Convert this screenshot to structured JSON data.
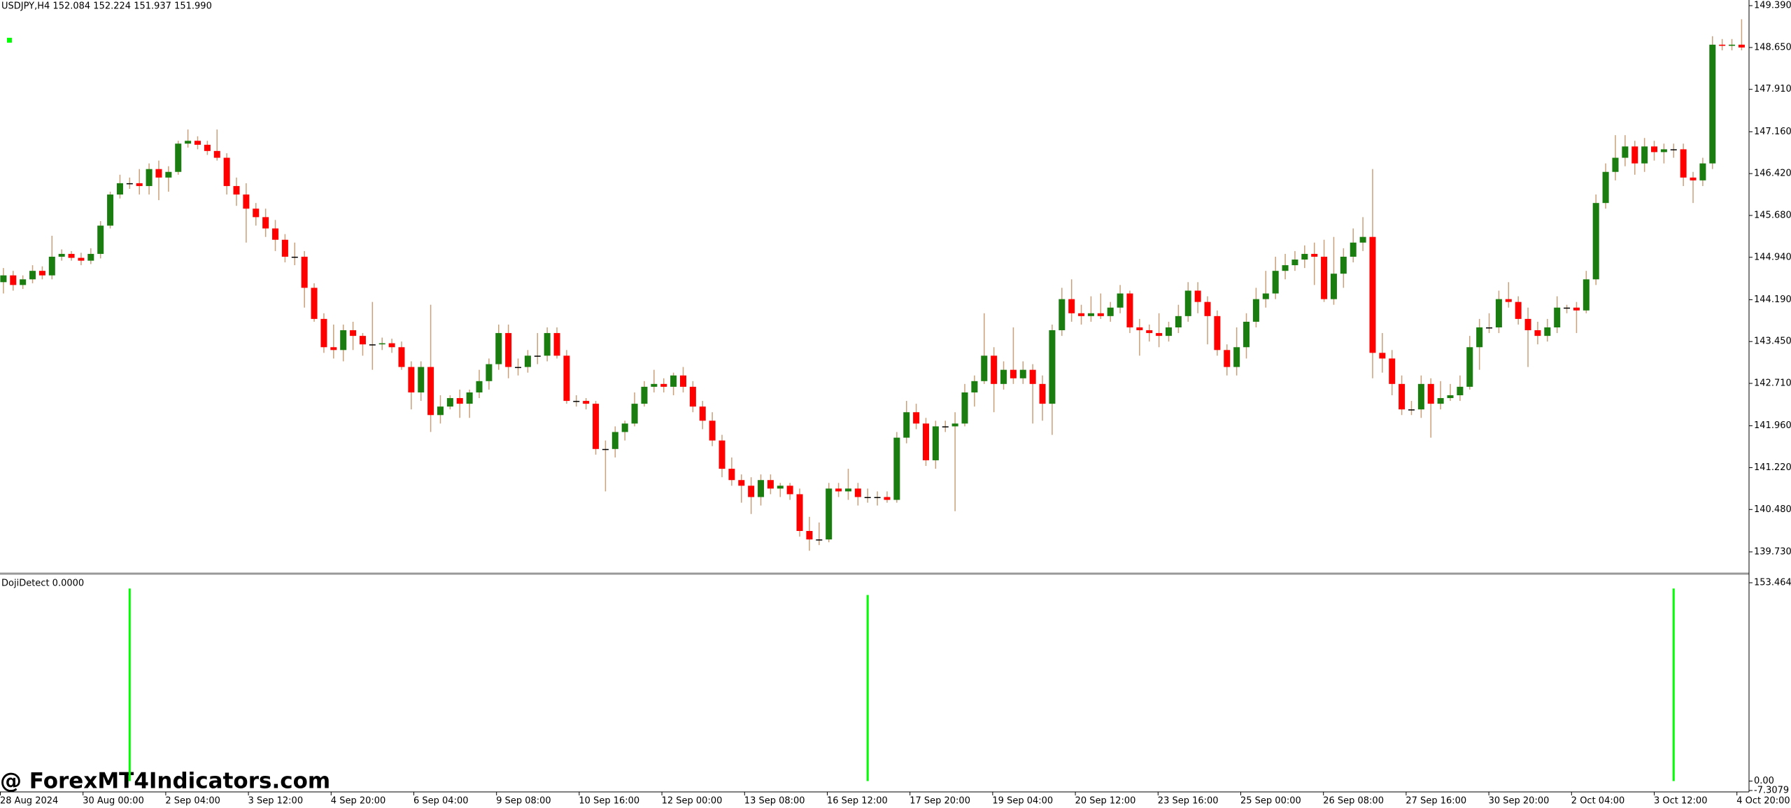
{
  "header": "USDJPY,H4  152.084 152.224 151.937 151.990",
  "watermark": "@ ForexMT4Indicators.com",
  "chart_data": [
    {
      "type": "candlestick",
      "up_color": "#1a7d10",
      "down_color": "#ff0000",
      "wick_color": "#c9a07a",
      "ylim": [
        139.37,
        149.49
      ],
      "yticks": [
        {
          "value": 149.39,
          "label": "149.390"
        },
        {
          "value": 148.65,
          "label": "148.650"
        },
        {
          "value": 147.91,
          "label": "147.910"
        },
        {
          "value": 147.16,
          "label": "147.160"
        },
        {
          "value": 146.42,
          "label": "146.420"
        },
        {
          "value": 145.68,
          "label": "145.680"
        },
        {
          "value": 144.94,
          "label": "144.940"
        },
        {
          "value": 144.19,
          "label": "144.190"
        },
        {
          "value": 143.45,
          "label": "143.450"
        },
        {
          "value": 142.71,
          "label": "142.710"
        },
        {
          "value": 141.96,
          "label": "141.960"
        },
        {
          "value": 141.22,
          "label": "141.220"
        },
        {
          "value": 140.48,
          "label": "140.480"
        },
        {
          "value": 139.73,
          "label": "139.730"
        }
      ],
      "xlabels": [
        "28 Aug 2024",
        "30 Aug 00:00",
        "2 Sep 04:00",
        "3 Sep 12:00",
        "4 Sep 20:00",
        "6 Sep 04:00",
        "9 Sep 08:00",
        "10 Sep 16:00",
        "12 Sep 00:00",
        "13 Sep 08:00",
        "16 Sep 12:00",
        "17 Sep 20:00",
        "19 Sep 04:00",
        "20 Sep 12:00",
        "23 Sep 16:00",
        "25 Sep 00:00",
        "26 Sep 08:00",
        "27 Sep 16:00",
        "30 Sep 20:00",
        "2 Oct 04:00",
        "3 Oct 12:00",
        "4 Oct 20:00"
      ],
      "candles": [
        [
          144.5,
          144.75,
          144.3,
          144.62
        ],
        [
          144.62,
          144.7,
          144.35,
          144.45
        ],
        [
          144.45,
          144.62,
          144.38,
          144.55
        ],
        [
          144.55,
          144.8,
          144.48,
          144.7
        ],
        [
          144.7,
          144.78,
          144.55,
          144.62
        ],
        [
          144.62,
          145.32,
          144.55,
          144.95
        ],
        [
          144.95,
          145.08,
          144.88,
          145.0
        ],
        [
          145.0,
          145.05,
          144.88,
          144.93
        ],
        [
          144.93,
          145.02,
          144.8,
          144.88
        ],
        [
          144.88,
          145.1,
          144.82,
          145.0
        ],
        [
          145.0,
          145.58,
          144.92,
          145.5
        ],
        [
          145.5,
          146.1,
          145.45,
          146.05
        ],
        [
          146.05,
          146.4,
          145.98,
          146.25
        ],
        [
          146.25,
          146.35,
          146.15,
          146.25
        ],
        [
          146.25,
          146.5,
          146.05,
          146.2
        ],
        [
          146.2,
          146.6,
          146.05,
          146.5
        ],
        [
          146.5,
          146.65,
          145.95,
          146.35
        ],
        [
          146.35,
          146.55,
          146.1,
          146.45
        ],
        [
          146.45,
          147.0,
          146.4,
          146.95
        ],
        [
          146.95,
          147.2,
          146.88,
          147.0
        ],
        [
          147.0,
          147.08,
          146.85,
          146.93
        ],
        [
          146.93,
          147.0,
          146.75,
          146.82
        ],
        [
          146.82,
          147.2,
          146.65,
          146.7
        ],
        [
          146.7,
          146.78,
          146.05,
          146.2
        ],
        [
          146.2,
          146.35,
          145.85,
          146.05
        ],
        [
          146.05,
          146.25,
          145.2,
          145.8
        ],
        [
          145.8,
          145.9,
          145.5,
          145.65
        ],
        [
          145.65,
          145.8,
          145.3,
          145.45
        ],
        [
          145.45,
          145.6,
          145.05,
          145.25
        ],
        [
          145.25,
          145.35,
          144.85,
          144.95
        ],
        [
          144.95,
          145.2,
          144.8,
          144.95
        ],
        [
          144.95,
          145.05,
          144.05,
          144.4
        ],
        [
          144.4,
          144.48,
          143.8,
          143.85
        ],
        [
          143.85,
          143.95,
          143.25,
          143.35
        ],
        [
          143.35,
          143.75,
          143.15,
          143.3
        ],
        [
          143.3,
          143.75,
          143.1,
          143.65
        ],
        [
          143.65,
          143.8,
          143.3,
          143.55
        ],
        [
          143.55,
          143.6,
          143.2,
          143.4
        ],
        [
          143.4,
          144.15,
          142.95,
          143.4
        ],
        [
          143.4,
          143.52,
          143.3,
          143.42
        ],
        [
          143.42,
          143.5,
          143.25,
          143.35
        ],
        [
          143.35,
          143.45,
          142.95,
          143.0
        ],
        [
          143.0,
          143.1,
          142.25,
          142.55
        ],
        [
          142.55,
          143.1,
          142.4,
          143.0
        ],
        [
          143.0,
          144.1,
          141.85,
          142.15
        ],
        [
          142.15,
          142.5,
          142.0,
          142.3
        ],
        [
          142.3,
          142.5,
          142.25,
          142.45
        ],
        [
          142.45,
          142.6,
          142.1,
          142.35
        ],
        [
          142.35,
          142.6,
          142.1,
          142.55
        ],
        [
          142.55,
          142.95,
          142.45,
          142.75
        ],
        [
          142.75,
          143.15,
          142.6,
          143.05
        ],
        [
          143.05,
          143.75,
          142.95,
          143.6
        ],
        [
          143.6,
          143.75,
          142.8,
          143.0
        ],
        [
          143.0,
          143.15,
          142.85,
          143.0
        ],
        [
          143.0,
          143.3,
          142.9,
          143.2
        ],
        [
          143.2,
          143.6,
          143.05,
          143.2
        ],
        [
          143.2,
          143.7,
          143.1,
          143.6
        ],
        [
          143.6,
          143.7,
          143.15,
          143.2
        ],
        [
          143.2,
          143.3,
          142.35,
          142.4
        ],
        [
          142.4,
          142.5,
          142.3,
          142.4
        ],
        [
          142.4,
          142.45,
          142.25,
          142.35
        ],
        [
          142.35,
          142.4,
          141.45,
          141.55
        ],
        [
          141.55,
          141.7,
          140.8,
          141.55
        ],
        [
          141.55,
          141.95,
          141.4,
          141.85
        ],
        [
          141.85,
          142.05,
          141.7,
          142.0
        ],
        [
          142.0,
          142.55,
          141.95,
          142.35
        ],
        [
          142.35,
          142.75,
          142.3,
          142.65
        ],
        [
          142.65,
          142.95,
          142.55,
          142.7
        ],
        [
          142.7,
          142.8,
          142.55,
          142.65
        ],
        [
          142.65,
          142.9,
          142.5,
          142.85
        ],
        [
          142.85,
          143.0,
          142.55,
          142.65
        ],
        [
          142.65,
          142.75,
          142.2,
          142.3
        ],
        [
          142.3,
          142.4,
          141.9,
          142.05
        ],
        [
          142.05,
          142.2,
          141.6,
          141.7
        ],
        [
          141.7,
          141.8,
          141.05,
          141.2
        ],
        [
          141.2,
          141.4,
          140.9,
          141.0
        ],
        [
          141.0,
          141.1,
          140.6,
          140.9
        ],
        [
          140.9,
          141.05,
          140.4,
          140.7
        ],
        [
          140.7,
          141.1,
          140.55,
          141.0
        ],
        [
          141.0,
          141.1,
          140.75,
          140.85
        ],
        [
          140.85,
          140.95,
          140.7,
          140.9
        ],
        [
          140.9,
          140.95,
          140.65,
          140.75
        ],
        [
          140.75,
          140.85,
          140.0,
          140.1
        ],
        [
          140.1,
          140.35,
          139.75,
          139.95
        ],
        [
          139.95,
          140.25,
          139.85,
          139.95
        ],
        [
          139.95,
          140.95,
          139.9,
          140.85
        ],
        [
          140.85,
          140.95,
          140.7,
          140.8
        ],
        [
          140.8,
          141.2,
          140.65,
          140.85
        ],
        [
          140.85,
          140.95,
          140.55,
          140.7
        ],
        [
          140.7,
          140.85,
          140.6,
          140.7
        ],
        [
          140.7,
          140.8,
          140.55,
          140.7
        ],
        [
          140.7,
          140.8,
          140.6,
          140.65
        ],
        [
          140.65,
          141.85,
          140.6,
          141.75
        ],
        [
          141.75,
          142.4,
          141.65,
          142.2
        ],
        [
          142.2,
          142.35,
          141.9,
          142.0
        ],
        [
          142.0,
          142.1,
          141.25,
          141.35
        ],
        [
          141.35,
          142.05,
          141.2,
          141.95
        ],
        [
          141.95,
          142.05,
          141.85,
          141.95
        ],
        [
          141.95,
          142.2,
          140.45,
          142.0
        ],
        [
          142.0,
          142.7,
          141.95,
          142.55
        ],
        [
          142.55,
          142.85,
          142.3,
          142.75
        ],
        [
          142.75,
          143.95,
          142.7,
          143.2
        ],
        [
          143.2,
          143.35,
          142.2,
          142.7
        ],
        [
          142.7,
          143.1,
          142.6,
          142.95
        ],
        [
          142.95,
          143.7,
          142.7,
          142.8
        ],
        [
          142.8,
          143.1,
          142.7,
          142.95
        ],
        [
          142.95,
          143.05,
          142.0,
          142.7
        ],
        [
          142.7,
          142.85,
          142.05,
          142.35
        ],
        [
          142.35,
          143.75,
          141.8,
          143.65
        ],
        [
          143.65,
          144.4,
          143.55,
          144.2
        ],
        [
          144.2,
          144.55,
          143.8,
          143.95
        ],
        [
          143.95,
          144.1,
          143.75,
          143.9
        ],
        [
          143.9,
          144.25,
          143.8,
          143.95
        ],
        [
          143.95,
          144.3,
          143.85,
          143.9
        ],
        [
          143.9,
          144.15,
          143.8,
          144.05
        ],
        [
          144.05,
          144.45,
          143.95,
          144.3
        ],
        [
          144.3,
          144.35,
          143.6,
          143.7
        ],
        [
          143.7,
          143.85,
          143.2,
          143.65
        ],
        [
          143.65,
          143.75,
          143.45,
          143.6
        ],
        [
          143.6,
          143.95,
          143.35,
          143.55
        ],
        [
          143.55,
          143.8,
          143.45,
          143.7
        ],
        [
          143.7,
          144.1,
          143.6,
          143.9
        ],
        [
          143.9,
          144.5,
          143.8,
          144.35
        ],
        [
          144.35,
          144.5,
          143.95,
          144.15
        ],
        [
          144.15,
          144.25,
          143.4,
          143.9
        ],
        [
          143.9,
          144.0,
          143.2,
          143.3
        ],
        [
          143.3,
          143.4,
          142.85,
          143.0
        ],
        [
          143.0,
          143.7,
          142.85,
          143.35
        ],
        [
          143.35,
          143.95,
          143.15,
          143.8
        ],
        [
          143.8,
          144.4,
          143.7,
          144.2
        ],
        [
          144.2,
          144.7,
          144.05,
          144.3
        ],
        [
          144.3,
          144.95,
          144.2,
          144.7
        ],
        [
          144.7,
          145.0,
          144.55,
          144.8
        ],
        [
          144.8,
          145.05,
          144.7,
          144.9
        ],
        [
          144.9,
          145.15,
          144.75,
          145.0
        ],
        [
          145.0,
          145.2,
          144.45,
          144.95
        ],
        [
          144.95,
          145.25,
          144.15,
          144.2
        ],
        [
          144.2,
          145.3,
          144.1,
          144.65
        ],
        [
          144.65,
          145.1,
          144.4,
          144.95
        ],
        [
          144.95,
          145.45,
          144.85,
          145.2
        ],
        [
          145.2,
          145.65,
          145.05,
          145.3
        ],
        [
          145.3,
          146.5,
          142.8,
          143.25
        ],
        [
          143.25,
          143.6,
          142.9,
          143.15
        ],
        [
          143.15,
          143.3,
          142.5,
          142.7
        ],
        [
          142.7,
          142.85,
          142.15,
          142.25
        ],
        [
          142.25,
          142.4,
          142.15,
          142.25
        ],
        [
          142.25,
          142.85,
          142.1,
          142.7
        ],
        [
          142.7,
          142.8,
          141.75,
          142.35
        ],
        [
          142.35,
          142.75,
          142.25,
          142.45
        ],
        [
          142.45,
          142.7,
          142.4,
          142.5
        ],
        [
          142.5,
          142.85,
          142.4,
          142.65
        ],
        [
          142.65,
          143.55,
          142.6,
          143.35
        ],
        [
          143.35,
          143.85,
          142.95,
          143.7
        ],
        [
          143.7,
          143.95,
          143.6,
          143.7
        ],
        [
          143.7,
          144.35,
          143.6,
          144.2
        ],
        [
          144.2,
          144.5,
          144.05,
          144.15
        ],
        [
          144.15,
          144.25,
          143.75,
          143.85
        ],
        [
          143.85,
          144.05,
          143.0,
          143.65
        ],
        [
          143.65,
          143.8,
          143.4,
          143.55
        ],
        [
          143.55,
          143.85,
          143.45,
          143.7
        ],
        [
          143.7,
          144.25,
          143.6,
          144.05
        ],
        [
          144.05,
          144.1,
          143.95,
          144.05
        ],
        [
          144.05,
          144.15,
          143.6,
          144.0
        ],
        [
          144.0,
          144.7,
          143.95,
          144.55
        ],
        [
          144.55,
          146.05,
          144.45,
          145.9
        ],
        [
          145.9,
          146.6,
          145.8,
          146.45
        ],
        [
          146.45,
          147.1,
          146.3,
          146.7
        ],
        [
          146.7,
          147.1,
          146.55,
          146.9
        ],
        [
          146.9,
          147.0,
          146.4,
          146.6
        ],
        [
          146.6,
          147.05,
          146.45,
          146.9
        ],
        [
          146.9,
          147.0,
          146.65,
          146.8
        ],
        [
          146.8,
          146.95,
          146.6,
          146.85
        ],
        [
          146.85,
          146.95,
          146.7,
          146.85
        ],
        [
          146.85,
          146.95,
          146.2,
          146.35
        ],
        [
          146.35,
          146.45,
          145.9,
          146.3
        ],
        [
          146.3,
          146.7,
          146.2,
          146.6
        ],
        [
          146.6,
          148.85,
          146.5,
          148.7
        ],
        [
          148.7,
          148.8,
          148.6,
          148.68
        ],
        [
          148.68,
          148.8,
          148.6,
          148.7
        ],
        [
          148.7,
          149.15,
          148.6,
          148.65
        ]
      ]
    },
    {
      "type": "signal",
      "title": "DojiDetect 0.0000",
      "color": "#00ff00",
      "ylim": [
        -7.3079,
        153.4649
      ],
      "yticks": [
        153.4649,
        {
          "value": 0,
          "label": "0.00"
        },
        -7.3079
      ],
      "signals": [
        {
          "x": 13,
          "value": 149
        },
        {
          "x": 89,
          "value": 144
        },
        {
          "x": 172,
          "value": 149
        }
      ]
    }
  ]
}
